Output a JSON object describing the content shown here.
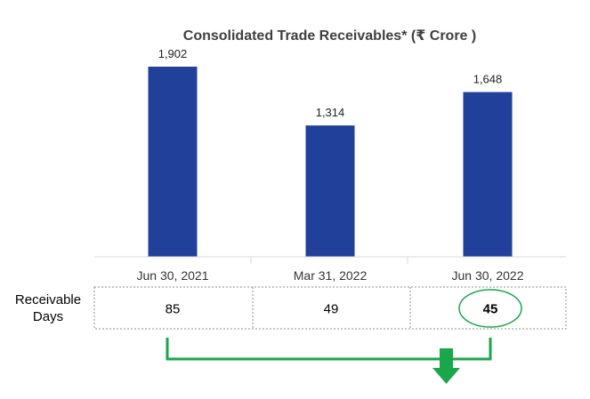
{
  "chart_data": {
    "type": "bar",
    "title": "Consolidated Trade Receivables* (₹ Crore )",
    "xlabel": "",
    "ylabel": "",
    "categories": [
      "Jun 30, 2021",
      "Mar 31, 2022",
      "Jun 30, 2022"
    ],
    "values": [
      1902,
      1314,
      1648
    ],
    "value_labels": [
      "1,902",
      "1,314",
      "1,648"
    ],
    "ylim": [
      0,
      2400
    ],
    "grid": false,
    "legend": "none",
    "bar_color": "#21409a"
  },
  "receivable_days": {
    "label": "Receivable Days",
    "values": [
      "85",
      "49",
      "45"
    ],
    "highlight_index": 2,
    "highlight_color": "#1aa64a",
    "trend": "down"
  }
}
